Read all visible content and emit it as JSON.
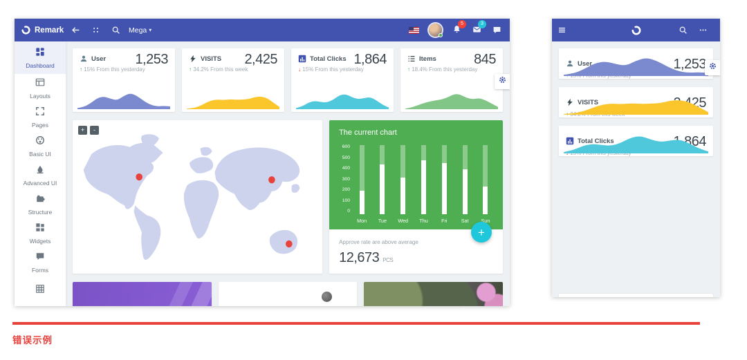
{
  "page": {
    "caption": "错误示例"
  },
  "colors": {
    "navbar": "#4153af",
    "content_bg": "#eef1f3",
    "active_item": "#4253af",
    "green_card": "#4fae52",
    "fab": "#1ec8da",
    "marker_red": "#e8423d",
    "map_land": "#cdd2ed",
    "divider_red": "#e8423d",
    "up_delta": "#4caf50",
    "down_delta": "#f44336"
  },
  "desktop": {
    "navbar": {
      "brand": "Remark",
      "menu_label": "Mega",
      "notification_count": "5",
      "message_count": "3"
    },
    "sidebar": {
      "items": [
        {
          "label": "Dashboard",
          "icon": "dashboard-icon",
          "active": true
        },
        {
          "label": "Layouts",
          "icon": "layouts-icon",
          "active": false
        },
        {
          "label": "Pages",
          "icon": "pages-icon",
          "active": false
        },
        {
          "label": "Basic UI",
          "icon": "palette-icon",
          "active": false
        },
        {
          "label": "Advanced UI",
          "icon": "ink-icon",
          "active": false
        },
        {
          "label": "Structure",
          "icon": "puzzle-icon",
          "active": false
        },
        {
          "label": "Widgets",
          "icon": "widgets-icon",
          "active": false
        },
        {
          "label": "Forms",
          "icon": "forms-icon",
          "active": false
        },
        {
          "label": "",
          "icon": "table-icon",
          "active": false
        }
      ]
    },
    "stats": [
      {
        "label": "User",
        "value": "1,253",
        "delta_dir": "up",
        "delta_text": "15% From this yesterday",
        "icon": "user-icon",
        "color": "#7b89ce",
        "sparkline": [
          4,
          8,
          22,
          40,
          46,
          38,
          32,
          48,
          58,
          48,
          30,
          16,
          10,
          12,
          10
        ]
      },
      {
        "label": "VISITS",
        "value": "2,425",
        "delta_dir": "up",
        "delta_text": "34.2% From this week",
        "icon": "bolt-icon",
        "color": "#fbc62c",
        "sparkline": [
          2,
          4,
          10,
          22,
          32,
          35,
          33,
          36,
          34,
          35,
          36,
          44,
          46,
          40,
          24,
          8
        ]
      },
      {
        "label": "Total Clicks",
        "value": "1,864",
        "delta_dir": "down",
        "delta_text": "15% From this yesterday",
        "icon": "chart-icon",
        "color": "#4fc8dc",
        "sparkline": [
          4,
          10,
          24,
          30,
          26,
          24,
          34,
          50,
          55,
          44,
          36,
          40,
          44,
          32,
          16,
          6
        ]
      },
      {
        "label": "Items",
        "value": "845",
        "delta_dir": "up",
        "delta_text": "18.4% From this yesterday",
        "icon": "list-icon",
        "color": "#82c687",
        "sparkline": [
          2,
          6,
          14,
          22,
          28,
          32,
          36,
          44,
          56,
          52,
          40,
          36,
          40,
          32,
          20,
          8
        ]
      }
    ],
    "map": {
      "zoom_in": "+",
      "zoom_out": "-",
      "markers": [
        "north-america",
        "east-asia",
        "australia"
      ]
    },
    "approve": {
      "text": "Approve rate are above average",
      "value": "12,673",
      "unit": "PCS"
    },
    "fab_label": "+"
  },
  "mobile": {
    "card_indexes": [
      0,
      1,
      2
    ]
  },
  "chart_data": {
    "type": "bar",
    "title": "The current chart",
    "categories": [
      "Mon",
      "Tue",
      "Wed",
      "Thu",
      "Fri",
      "Sat",
      "Sun"
    ],
    "values": [
      205,
      430,
      320,
      470,
      445,
      390,
      240
    ],
    "ylim": [
      0,
      600
    ],
    "yticks": [
      0,
      100,
      200,
      300,
      400,
      500,
      600
    ],
    "bar_color": "#ffffff",
    "track_color": "rgba(255,255,255,0.35)",
    "background": "#4fae52"
  }
}
